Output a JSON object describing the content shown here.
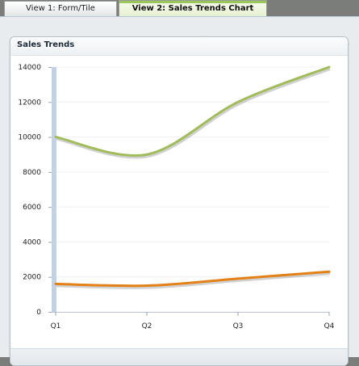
{
  "tabs": [
    {
      "label": "View 1: Form/Tile",
      "active": false
    },
    {
      "label": "View 2: Sales Trends Chart",
      "active": true
    }
  ],
  "panel": {
    "title": "Sales Trends"
  },
  "colors": {
    "series_1": "#a3bc5b",
    "series_2": "#e38116",
    "axis_bar": "#c3d2e3"
  },
  "chart_data": {
    "type": "line",
    "categories": [
      "Q1",
      "Q2",
      "Q3",
      "Q4"
    ],
    "series": [
      {
        "values": [
          10000,
          9000,
          12000,
          14000
        ]
      },
      {
        "values": [
          1600,
          1500,
          1900,
          2300
        ]
      }
    ],
    "ylim": [
      0,
      14000
    ],
    "yticks": [
      0,
      2000,
      4000,
      6000,
      8000,
      10000,
      12000,
      14000
    ],
    "grid": true,
    "legend": "none",
    "title": "",
    "xlabel": "",
    "ylabel": ""
  }
}
